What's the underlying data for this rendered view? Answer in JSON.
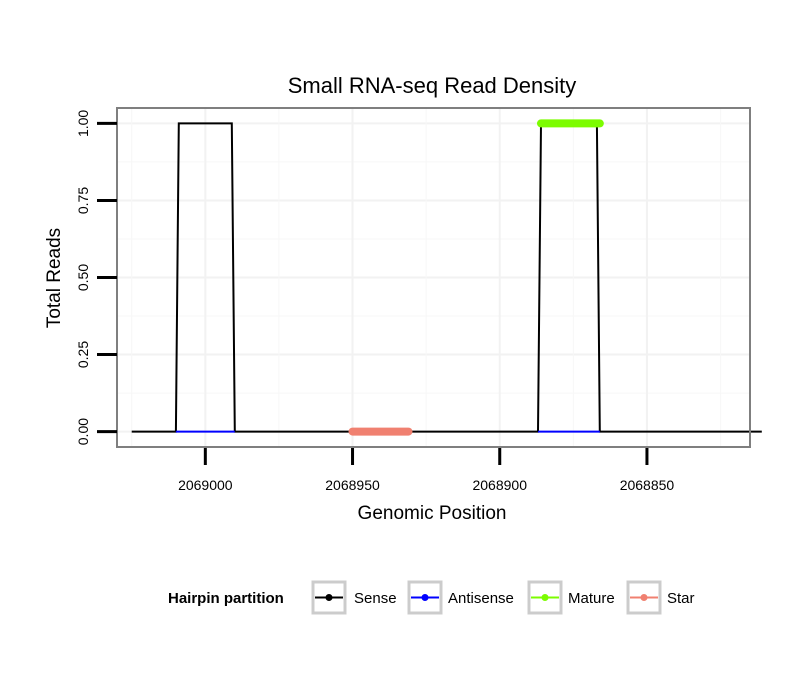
{
  "chart_data": {
    "type": "line",
    "title": "Small RNA-seq Read Density",
    "xlabel": "Genomic Position",
    "ylabel": "Total Reads",
    "x_reversed": true,
    "xlim": [
      2069030,
      2068815
    ],
    "ylim": [
      -0.05,
      1.05
    ],
    "x_ticks": [
      2069000,
      2068950,
      2068900,
      2068850
    ],
    "x_tick_labels": [
      "2069000",
      "2068950",
      "2068900",
      "2068850"
    ],
    "y_ticks": [
      0,
      0.25,
      0.5,
      0.75,
      1.0
    ],
    "y_tick_labels": [
      "0.00",
      "0.25",
      "0.50",
      "0.75",
      "1.00"
    ],
    "grid": true,
    "legend": {
      "title": "Hairpin partition",
      "position": "bottom",
      "entries": [
        "Sense",
        "Antisense",
        "Mature",
        "Star"
      ]
    },
    "series": [
      {
        "name": "Sense",
        "color": "#000000",
        "points": [
          [
            2069025,
            0
          ],
          [
            2069010,
            0
          ],
          [
            2069009,
            1
          ],
          [
            2068991,
            1
          ],
          [
            2068990,
            0
          ],
          [
            2068887,
            0
          ],
          [
            2068886,
            1
          ],
          [
            2068867,
            1
          ],
          [
            2068866,
            0
          ],
          [
            2068811,
            0
          ]
        ]
      },
      {
        "name": "Antisense",
        "color": "#0000ff",
        "segments": [
          [
            [
              2069010,
              0
            ],
            [
              2068990,
              0
            ]
          ],
          [
            [
              2068887,
              0
            ],
            [
              2068866,
              0
            ]
          ]
        ]
      },
      {
        "name": "Mature",
        "color": "#7cfc00",
        "segments": [
          [
            [
              2068886,
              1
            ],
            [
              2068866,
              1
            ]
          ]
        ]
      },
      {
        "name": "Star",
        "color": "#f08070",
        "segments": [
          [
            [
              2068950,
              0
            ],
            [
              2068931,
              0
            ]
          ]
        ]
      }
    ]
  }
}
